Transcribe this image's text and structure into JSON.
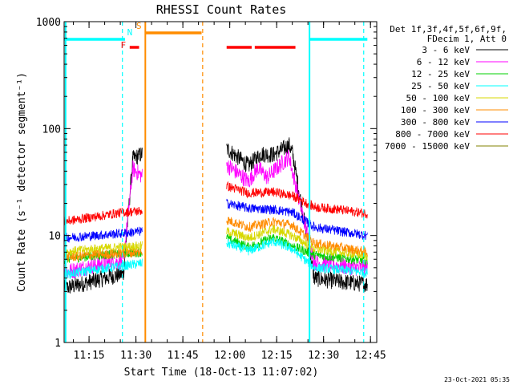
{
  "chart_data": {
    "type": "line",
    "title": "RHESSI Count Rates",
    "xlabel": "Start Time (18-Oct-13 11:07:02)",
    "ylabel": "Count Rate (s⁻¹ detector segment⁻¹)",
    "x_range": [
      "11:07:02",
      "12:47:00"
    ],
    "ylim": [
      1,
      1000
    ],
    "yscale": "log",
    "x_ticks": [
      "11:15",
      "11:30",
      "11:45",
      "12:00",
      "12:15",
      "12:30",
      "12:45"
    ],
    "y_ticks": [
      "1",
      "10",
      "100",
      "1000"
    ],
    "grid": false,
    "legend_position": "right",
    "legend_header": [
      "Det 1f,3f,4f,5f,6f,9f,",
      "FDecim 1, Att 0"
    ],
    "timestamp": "23-Oct-2021 05:35",
    "gaps": [
      [
        "11:30:50",
        "11:57:20"
      ]
    ],
    "series": [
      {
        "name": "3 - 6 keV",
        "color": "#000000",
        "values": [
          [
            "11:07",
            3.2
          ],
          [
            "11:17",
            3.8
          ],
          [
            "11:26",
            4.4
          ],
          [
            "11:29",
            52
          ],
          [
            "11:32",
            58
          ],
          [
            "11:59",
            65
          ],
          [
            "12:06",
            45
          ],
          [
            "12:10",
            58
          ],
          [
            "12:14",
            57
          ],
          [
            "12:19",
            70
          ],
          [
            "12:20",
            60
          ],
          [
            "12:27",
            4.0
          ],
          [
            "12:35",
            3.7
          ],
          [
            "12:44",
            3.5
          ]
        ]
      },
      {
        "name": "6 - 12 keV",
        "color": "#ff00ff",
        "values": [
          [
            "11:07",
            4.5
          ],
          [
            "11:17",
            5.3
          ],
          [
            "11:26",
            5.8
          ],
          [
            "11:29",
            42
          ],
          [
            "11:32",
            36
          ],
          [
            "11:59",
            46
          ],
          [
            "12:06",
            32
          ],
          [
            "12:09",
            43
          ],
          [
            "12:12",
            35
          ],
          [
            "12:19",
            55
          ],
          [
            "12:20",
            40
          ],
          [
            "12:27",
            5.6
          ],
          [
            "12:35",
            5.2
          ],
          [
            "12:44",
            4.9
          ]
        ]
      },
      {
        "name": "12 - 25 keV",
        "color": "#00d000",
        "values": [
          [
            "11:07",
            6.0
          ],
          [
            "11:17",
            6.5
          ],
          [
            "11:26",
            6.8
          ],
          [
            "11:32",
            7.0
          ],
          [
            "11:59",
            9.5
          ],
          [
            "12:06",
            7.8
          ],
          [
            "12:14",
            9.6
          ],
          [
            "12:20",
            8.0
          ],
          [
            "12:27",
            6.6
          ],
          [
            "12:35",
            6.2
          ],
          [
            "12:44",
            5.8
          ]
        ]
      },
      {
        "name": "25 - 50 keV",
        "color": "#00ffff",
        "values": [
          [
            "11:07",
            4.3
          ],
          [
            "11:17",
            4.8
          ],
          [
            "11:26",
            5.2
          ],
          [
            "11:32",
            5.5
          ],
          [
            "11:59",
            8.5
          ],
          [
            "12:06",
            7.2
          ],
          [
            "12:14",
            8.8
          ],
          [
            "12:20",
            7.5
          ],
          [
            "12:27",
            5.0
          ],
          [
            "12:35",
            4.8
          ],
          [
            "12:44",
            4.5
          ]
        ]
      },
      {
        "name": "50 - 100 keV",
        "color": "#d8d800",
        "values": [
          [
            "11:07",
            7.0
          ],
          [
            "11:17",
            7.5
          ],
          [
            "11:26",
            7.8
          ],
          [
            "11:32",
            8.0
          ],
          [
            "11:59",
            11.0
          ],
          [
            "12:06",
            9.5
          ],
          [
            "12:14",
            11.5
          ],
          [
            "12:20",
            10.0
          ],
          [
            "12:27",
            7.5
          ],
          [
            "12:35",
            7.0
          ],
          [
            "12:44",
            6.5
          ]
        ]
      },
      {
        "name": "100 - 300 keV",
        "color": "#ff8c00",
        "values": [
          [
            "11:07",
            6.2
          ],
          [
            "11:17",
            6.6
          ],
          [
            "11:26",
            6.8
          ],
          [
            "11:32",
            7.0
          ],
          [
            "11:59",
            14.0
          ],
          [
            "12:06",
            12.0
          ],
          [
            "12:14",
            13.5
          ],
          [
            "12:20",
            12.5
          ],
          [
            "12:27",
            8.5
          ],
          [
            "12:35",
            7.8
          ],
          [
            "12:44",
            7.0
          ]
        ]
      },
      {
        "name": "300 - 800 keV",
        "color": "#0000ff",
        "values": [
          [
            "11:07",
            9.5
          ],
          [
            "11:17",
            10.0
          ],
          [
            "11:26",
            10.5
          ],
          [
            "11:32",
            11.0
          ],
          [
            "11:59",
            20.0
          ],
          [
            "12:06",
            18.0
          ],
          [
            "12:14",
            17.5
          ],
          [
            "12:20",
            16.5
          ],
          [
            "12:27",
            12.0
          ],
          [
            "12:35",
            11.0
          ],
          [
            "12:44",
            10.0
          ]
        ]
      },
      {
        "name": "800 - 7000 keV",
        "color": "#ff0000",
        "values": [
          [
            "11:07",
            13.5
          ],
          [
            "11:17",
            15.0
          ],
          [
            "11:26",
            16.5
          ],
          [
            "11:32",
            17.0
          ],
          [
            "11:59",
            29.0
          ],
          [
            "12:06",
            25.0
          ],
          [
            "12:14",
            25.5
          ],
          [
            "12:20",
            23.5
          ],
          [
            "12:27",
            18.5
          ],
          [
            "12:35",
            17.5
          ],
          [
            "12:44",
            16.0
          ]
        ]
      },
      {
        "name": "7000 - 15000 keV",
        "color": "#808000",
        "values": []
      }
    ],
    "attenuator_flags": [
      {
        "label": "F",
        "color": "#ff0000",
        "segments": [
          [
            "11:28:00",
            "11:31:00"
          ]
        ]
      },
      {
        "label": "N",
        "color": "#00ffff",
        "segments": [
          [
            "11:07:02",
            "11:26:30"
          ],
          [
            "12:25:30",
            "12:44:00"
          ]
        ]
      },
      {
        "label": "S",
        "color": "#ff8c00",
        "segments": [
          [
            "11:33:00",
            "11:51:00"
          ]
        ]
      },
      {
        "label": "",
        "color": "#ff0000",
        "segments": [
          [
            "11:59:00",
            "12:07:00"
          ],
          [
            "12:08:00",
            "12:21:00"
          ]
        ]
      }
    ],
    "vertical_markers": [
      {
        "x": "11:07:30",
        "color": "#00ffff",
        "style": "solid"
      },
      {
        "x": "11:25:40",
        "color": "#00ffff",
        "style": "dashed"
      },
      {
        "x": "11:33:00",
        "color": "#ff8c00",
        "style": "solid"
      },
      {
        "x": "11:51:20",
        "color": "#ff8c00",
        "style": "dashed"
      },
      {
        "x": "12:25:30",
        "color": "#00ffff",
        "style": "solid"
      },
      {
        "x": "12:42:50",
        "color": "#00ffff",
        "style": "dashed"
      }
    ]
  }
}
